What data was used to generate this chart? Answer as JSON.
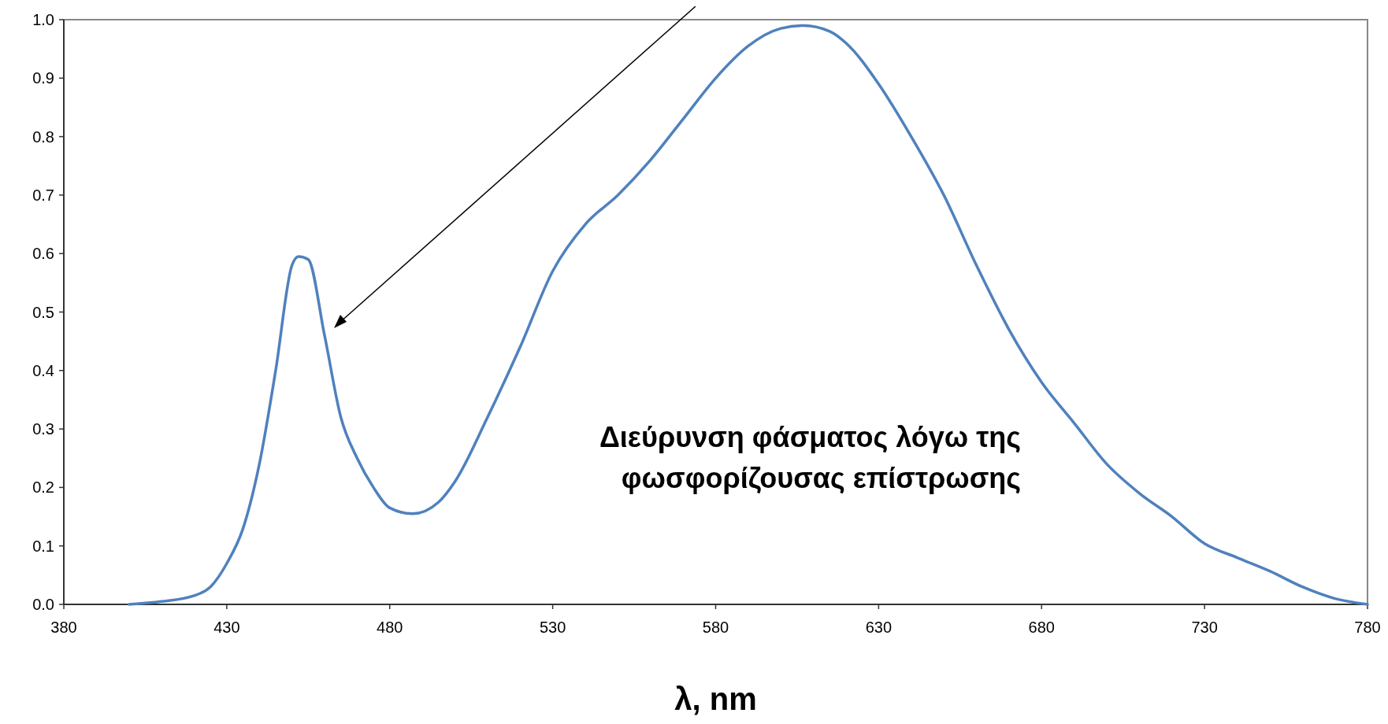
{
  "chart_data": {
    "type": "line",
    "xlabel": "λ, nm",
    "x": [
      400,
      410,
      420,
      425,
      430,
      435,
      440,
      445,
      450,
      452,
      455,
      460,
      465,
      470,
      475,
      480,
      487,
      495,
      500,
      510,
      520,
      530,
      540,
      550,
      560,
      570,
      580,
      590,
      600,
      607,
      615,
      620,
      630,
      640,
      650,
      660,
      670,
      680,
      690,
      700,
      710,
      720,
      730,
      740,
      750,
      760,
      770,
      780
    ],
    "series": [
      {
        "color": "#4f81bd",
        "values": [
          0,
          0.005,
          0.015,
          0.03,
          0.07,
          0.13,
          0.24,
          0.4,
          0.58,
          0.595,
          0.59,
          0.46,
          0.32,
          0.25,
          0.2,
          0.165,
          0.155,
          0.175,
          0.21,
          0.32,
          0.44,
          0.57,
          0.65,
          0.7,
          0.76,
          0.83,
          0.9,
          0.955,
          0.985,
          0.99,
          0.98,
          0.96,
          0.89,
          0.8,
          0.7,
          0.58,
          0.47,
          0.38,
          0.31,
          0.24,
          0.19,
          0.15,
          0.104,
          0.08,
          0.057,
          0.03,
          0.01,
          0
        ]
      }
    ],
    "xlim": [
      380,
      780
    ],
    "xticks": [
      380,
      430,
      480,
      530,
      580,
      630,
      680,
      730,
      780
    ],
    "ylim": [
      0,
      1
    ],
    "yticks": [
      {
        "value": 0,
        "label": "0.0"
      },
      {
        "value": 0.1,
        "label": "0.1"
      },
      {
        "value": 0.2,
        "label": "0.2"
      },
      {
        "value": 0.3,
        "label": "0.3"
      },
      {
        "value": 0.4,
        "label": "0.4"
      },
      {
        "value": 0.5,
        "label": "0.5"
      },
      {
        "value": 0.6,
        "label": "0.6"
      },
      {
        "value": 0.7,
        "label": "0.7"
      },
      {
        "value": 0.8,
        "label": "0.8"
      },
      {
        "value": 0.9,
        "label": "0.9"
      },
      {
        "value": 1,
        "label": "1.0"
      }
    ],
    "grid": false,
    "annotations": [
      "Διεύρυνση φάσματος λόγω της\nφωσφορίζουσας επίστρωσης"
    ]
  }
}
